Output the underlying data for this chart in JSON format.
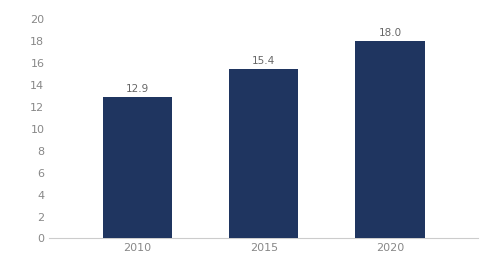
{
  "categories": [
    "2010",
    "2015",
    "2020"
  ],
  "values": [
    12.9,
    15.4,
    18.0
  ],
  "bar_color": "#1f3560",
  "bar_width": 0.55,
  "ylim": [
    0,
    20
  ],
  "yticks": [
    0,
    2,
    4,
    6,
    8,
    10,
    12,
    14,
    16,
    18,
    20
  ],
  "label_fontsize": 7.5,
  "tick_fontsize": 8,
  "label_color": "#666666",
  "tick_color": "#888888",
  "background_color": "#ffffff",
  "bottom_spine_color": "#cccccc"
}
